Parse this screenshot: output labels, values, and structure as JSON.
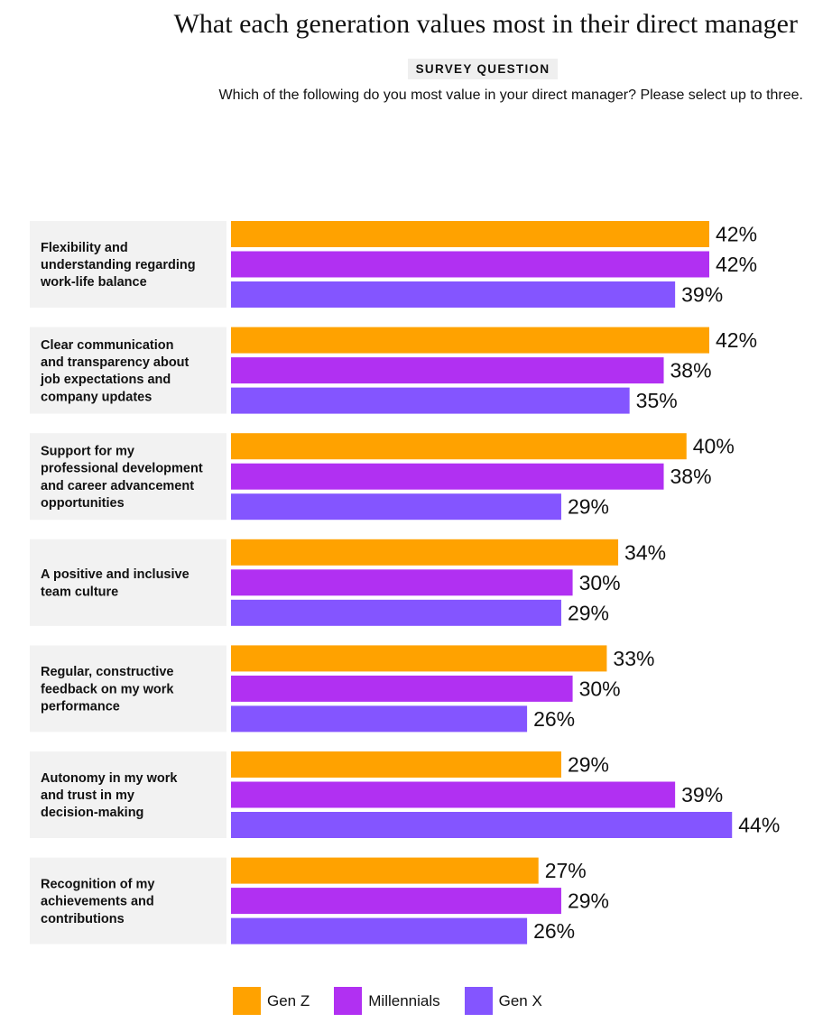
{
  "header": {
    "title": "What each generation values most in their direct manager",
    "subtitle": "SURVEY QUESTION",
    "question": "Which of the following do you most value in your direct manager? Please select up to three."
  },
  "colors": {
    "gen_z": "#ffa200",
    "millennials": "#b130f2",
    "gen_x": "#8455ff",
    "label_bg": "#f2f2f2"
  },
  "legend": [
    {
      "name": "Gen Z",
      "color": "#ffa200"
    },
    {
      "name": "Millennials",
      "color": "#b130f2"
    },
    {
      "name": "Gen X",
      "color": "#8455ff"
    }
  ],
  "chart_data": {
    "type": "bar",
    "orientation": "horizontal",
    "categories": [
      [
        "Flexibility and",
        "understanding regarding",
        "work-life balance"
      ],
      [
        "Clear communication",
        "and transparency about",
        "job expectations and",
        "company updates"
      ],
      [
        "Support for my",
        "professional development",
        "and career advancement",
        "opportunities"
      ],
      [
        "A positive and inclusive",
        "team culture"
      ],
      [
        "Regular, constructive",
        "feedback on my work",
        "performance"
      ],
      [
        "Autonomy in my work",
        "and trust in my",
        "decision-making"
      ],
      [
        "Recognition of my",
        "achievements and",
        "contributions"
      ]
    ],
    "series": [
      {
        "name": "Gen Z",
        "color": "#ffa200",
        "values": [
          42,
          42,
          40,
          34,
          33,
          29,
          27
        ]
      },
      {
        "name": "Millennials",
        "color": "#b130f2",
        "values": [
          42,
          38,
          38,
          30,
          30,
          39,
          29
        ]
      },
      {
        "name": "Gen X",
        "color": "#8455ff",
        "values": [
          39,
          35,
          29,
          29,
          26,
          44,
          26
        ]
      }
    ],
    "value_suffix": "%",
    "xlim": [
      0,
      44
    ],
    "grid": false,
    "legend_position": "bottom"
  }
}
